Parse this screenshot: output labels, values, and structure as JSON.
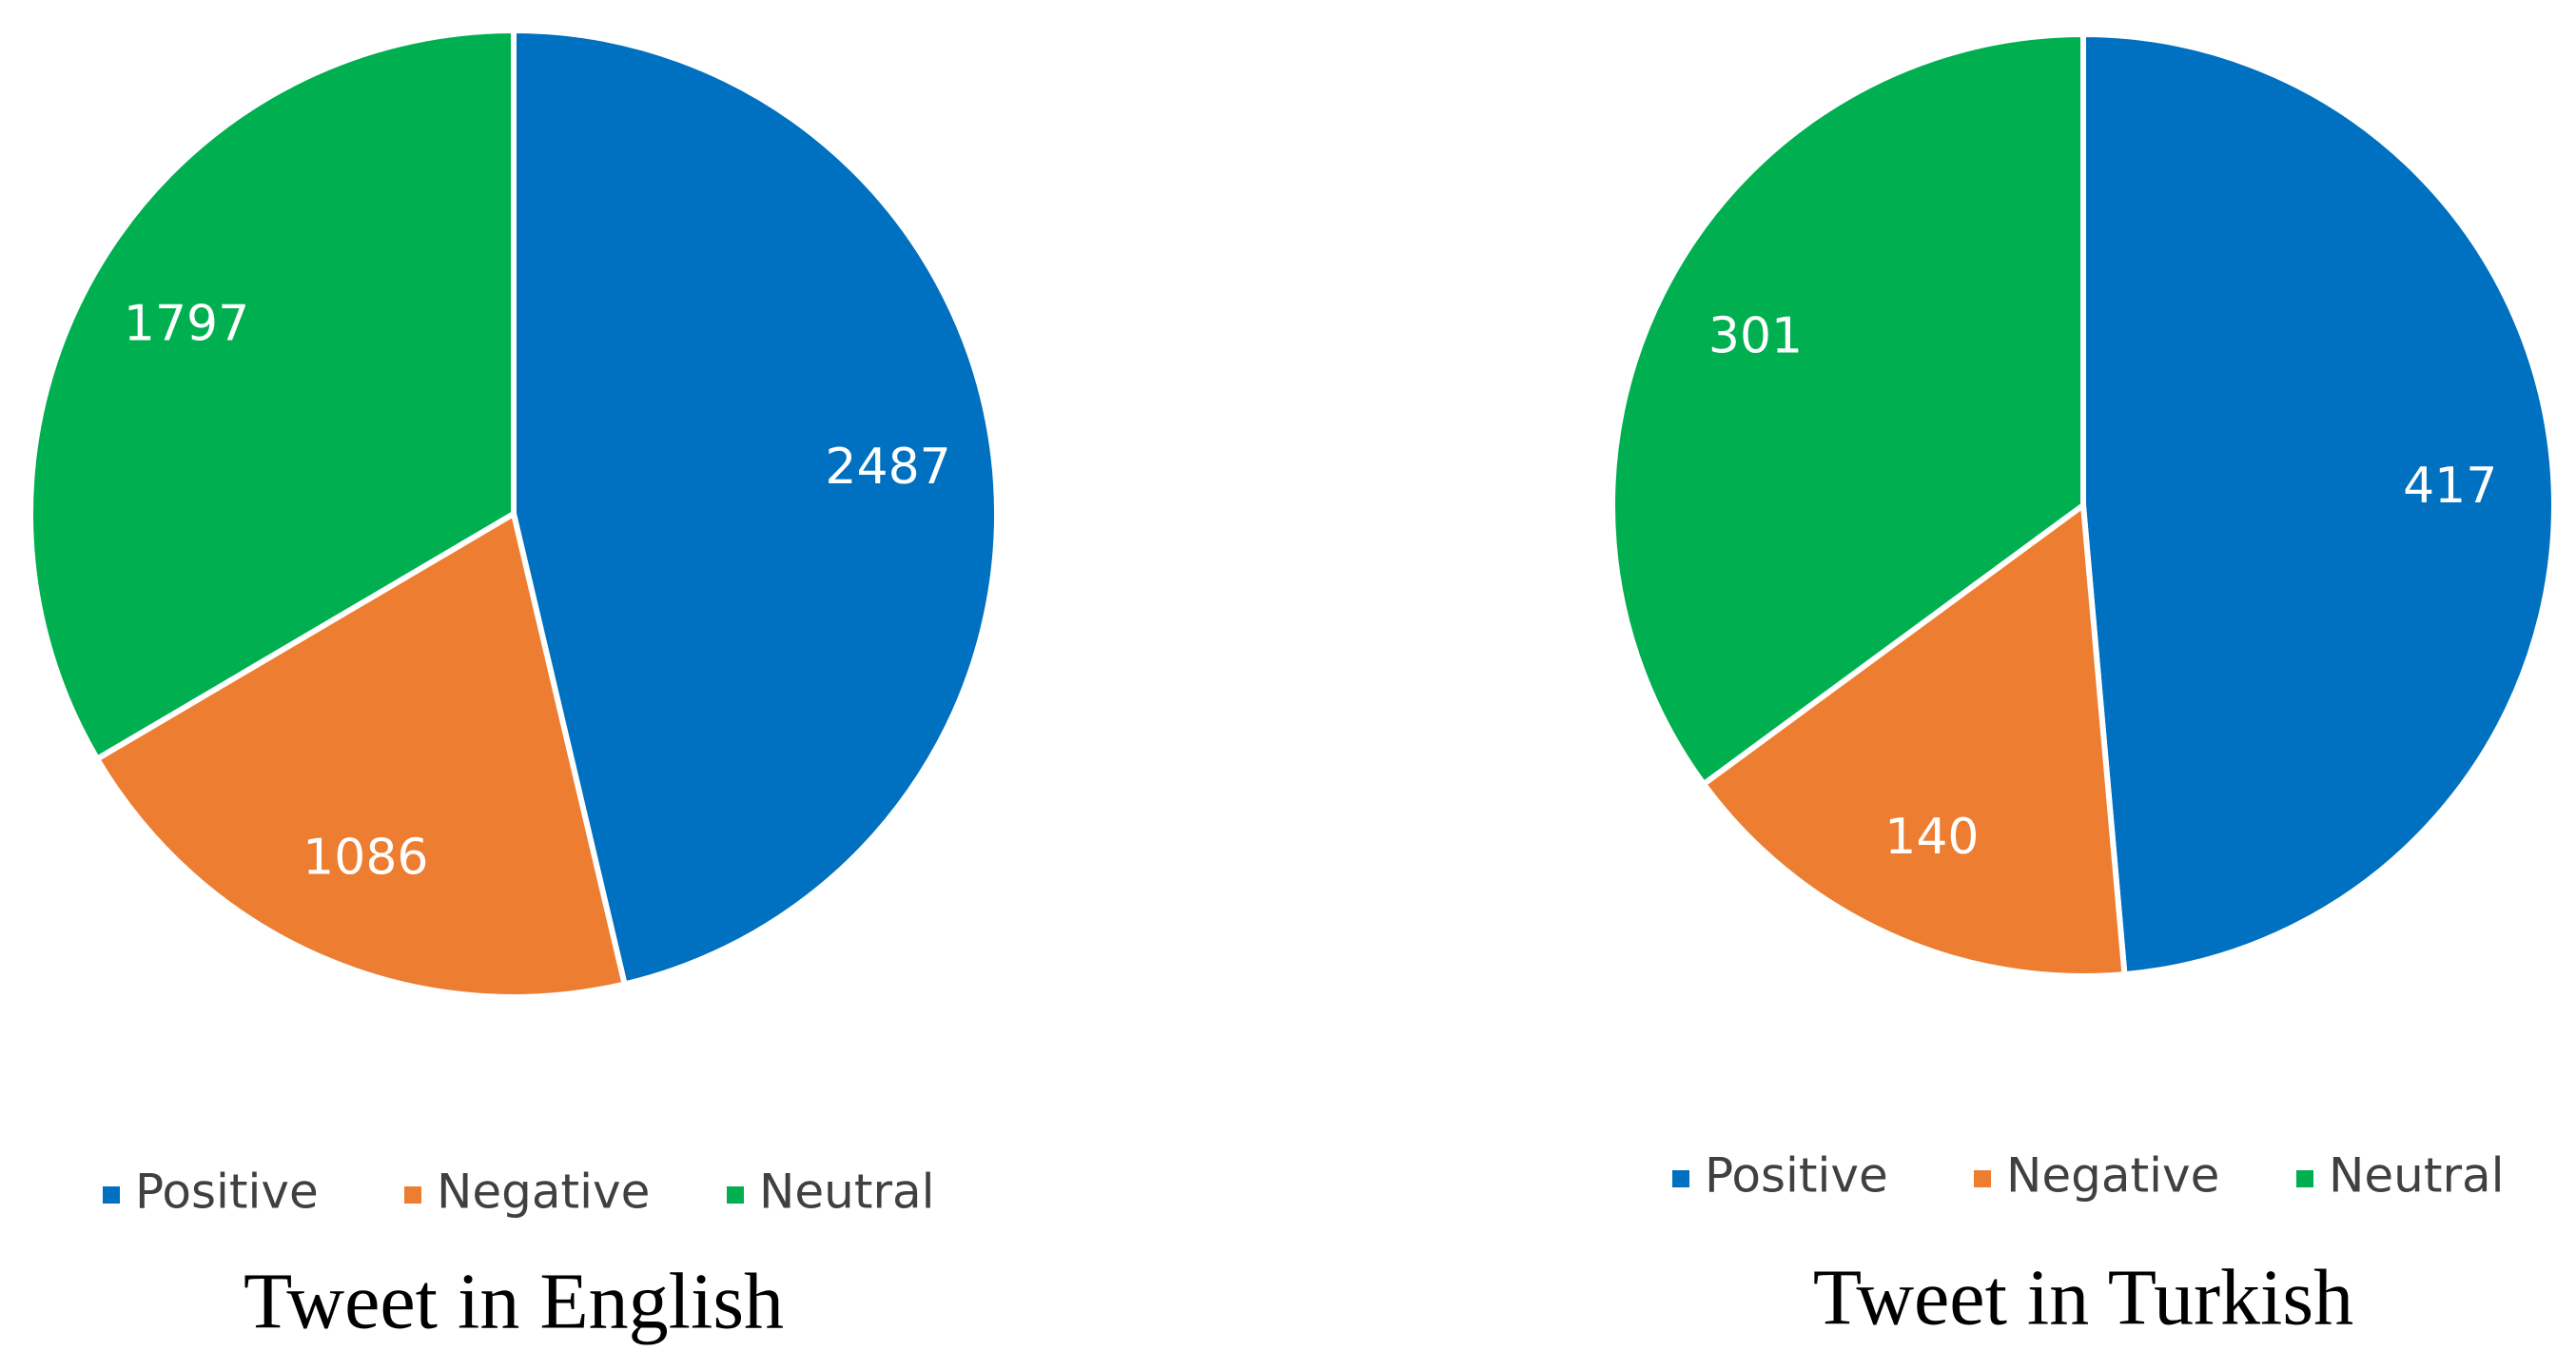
{
  "chart_data": [
    {
      "type": "pie",
      "title": "Tweet in English",
      "categories": [
        "Positive",
        "Negative",
        "Neutral"
      ],
      "values": [
        2487,
        1086,
        1797
      ],
      "colors": [
        "#0070c0",
        "#ed7d31",
        "#00b050"
      ]
    },
    {
      "type": "pie",
      "title": "Tweet in Turkish",
      "categories": [
        "Positive",
        "Negative",
        "Neutral"
      ],
      "values": [
        417,
        140,
        301
      ],
      "colors": [
        "#0070c0",
        "#ed7d31",
        "#00b050"
      ]
    }
  ]
}
